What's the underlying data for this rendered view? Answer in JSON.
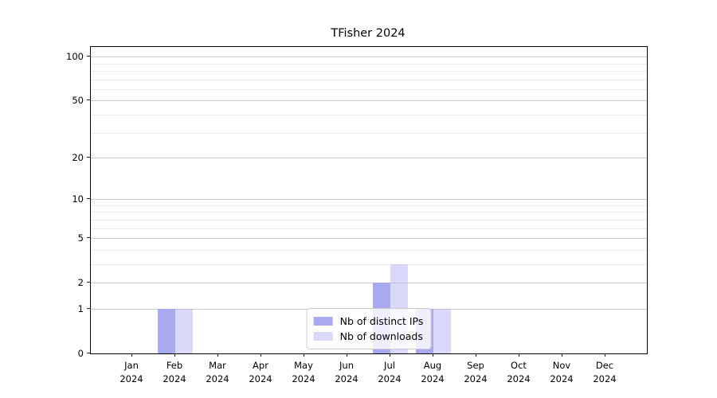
{
  "chart_data": {
    "type": "bar",
    "title": "TFisher 2024",
    "categories": [
      "Jan",
      "Feb",
      "Mar",
      "Apr",
      "May",
      "Jun",
      "Jul",
      "Aug",
      "Sep",
      "Oct",
      "Nov",
      "Dec"
    ],
    "category_year": "2024",
    "series": [
      {
        "name": "Nb of distinct IPs",
        "color": "#a9a9f0",
        "values": [
          0,
          1,
          0,
          0,
          0,
          0,
          2,
          1,
          0,
          0,
          0,
          0
        ]
      },
      {
        "name": "Nb of downloads",
        "color": "rgba(168,168,240,0.45)",
        "values": [
          0,
          1,
          0,
          0,
          0,
          0,
          3,
          1,
          0,
          0,
          0,
          0
        ]
      }
    ],
    "xlabel": "",
    "ylabel": "",
    "y_axis": {
      "scale": "log1p",
      "ticks": [
        0,
        1,
        2,
        5,
        10,
        20,
        50,
        100
      ],
      "minor_ticks": [
        3,
        4,
        6,
        7,
        8,
        9,
        30,
        40,
        60,
        70,
        80,
        90
      ],
      "ylim": [
        0,
        117
      ]
    },
    "grid": true,
    "legend_position": "lower center"
  }
}
